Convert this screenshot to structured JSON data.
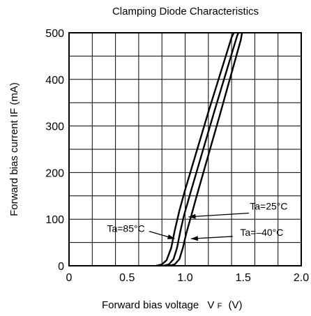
{
  "chart_data": {
    "type": "line",
    "title": "Clamping Diode Characteristics",
    "xlabel": "Forward bias voltage",
    "xlabel_symbol": "V",
    "xlabel_symbol_sub": "F",
    "xlabel_unit": "(V)",
    "ylabel": "Forward bias current  IF (mA)",
    "xlim": [
      0,
      2.0
    ],
    "ylim": [
      0,
      500
    ],
    "x_ticks": [
      "0",
      "0.5",
      "1.0",
      "1.5",
      "2.0"
    ],
    "y_ticks": [
      "0",
      "100",
      "200",
      "300",
      "400",
      "500"
    ],
    "grid": true,
    "series": [
      {
        "name": "Ta=85°C",
        "points": [
          [
            0.75,
            0
          ],
          [
            0.8,
            3
          ],
          [
            0.84,
            12
          ],
          [
            0.88,
            38
          ],
          [
            0.91,
            75
          ],
          [
            0.95,
            118
          ],
          [
            1.0,
            163
          ],
          [
            1.2,
            330
          ],
          [
            1.4,
            490
          ],
          [
            1.42,
            500
          ]
        ]
      },
      {
        "name": "Ta=25°C",
        "points": [
          [
            0.81,
            0
          ],
          [
            0.86,
            3
          ],
          [
            0.9,
            14
          ],
          [
            0.93,
            38
          ],
          [
            0.96,
            75
          ],
          [
            0.99,
            108
          ],
          [
            1.05,
            160
          ],
          [
            1.25,
            330
          ],
          [
            1.45,
            495
          ],
          [
            1.46,
            500
          ]
        ]
      },
      {
        "name": "Ta=-40°C",
        "points": [
          [
            0.86,
            0
          ],
          [
            0.91,
            3
          ],
          [
            0.95,
            14
          ],
          [
            0.98,
            38
          ],
          [
            1.01,
            70
          ],
          [
            1.05,
            105
          ],
          [
            1.1,
            150
          ],
          [
            1.3,
            325
          ],
          [
            1.48,
            485
          ],
          [
            1.49,
            500
          ]
        ]
      }
    ],
    "annotations": [
      {
        "text": "Ta=25°C",
        "series": 1
      },
      {
        "text": "Ta=85°C",
        "series": 0
      },
      {
        "text": "Ta=–40°C",
        "series": 2
      }
    ]
  }
}
